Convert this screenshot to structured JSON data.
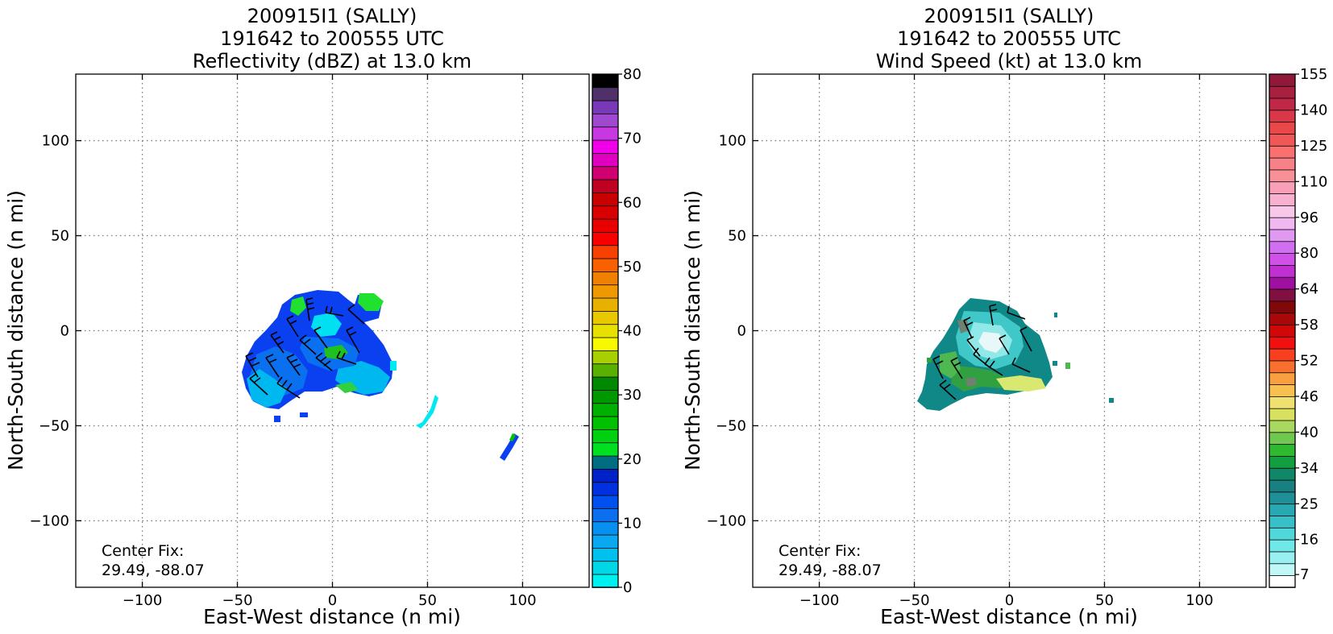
{
  "chart_data": [
    {
      "type": "heatmap",
      "title_lines": [
        "200915I1 (SALLY)",
        "191642 to 200555 UTC",
        "Reflectivity (dBZ) at 13.0 km"
      ],
      "xlabel": "East-West distance (n mi)",
      "ylabel": "North-South distance (n mi)",
      "xlim": [
        -135,
        135
      ],
      "ylim": [
        -135,
        135
      ],
      "xticks": [
        -100,
        -50,
        0,
        50,
        100
      ],
      "yticks": [
        -100,
        -50,
        0,
        50,
        100
      ],
      "xtick_labels": [
        "−100",
        "−50",
        "0",
        "50",
        "100"
      ],
      "ytick_labels": [
        "−100",
        "−50",
        "0",
        "50",
        "100"
      ],
      "grid": true,
      "center_fix_label": "Center Fix:",
      "center_fix_value": "29.49, -88.07",
      "colorbar": {
        "ticks": [
          0,
          10,
          20,
          30,
          40,
          50,
          60,
          70,
          80
        ],
        "tick_labels": [
          "0",
          "10",
          "20",
          "30",
          "40",
          "50",
          "60",
          "70",
          "80"
        ],
        "colors": [
          "#00f0f0",
          "#00d8e8",
          "#00c0f0",
          "#0aa8f0",
          "#0890f0",
          "#0a70f0",
          "#0050f0",
          "#0030e0",
          "#0020c8",
          "#006e80",
          "#00e020",
          "#00d010",
          "#00c000",
          "#00b000",
          "#009800",
          "#008800",
          "#58b000",
          "#a8d000",
          "#f8f800",
          "#e8e000",
          "#e8c800",
          "#e8b000",
          "#f09800",
          "#f08000",
          "#f86000",
          "#f84000",
          "#f80000",
          "#e80000",
          "#d80000",
          "#c80000",
          "#c00020",
          "#d00070",
          "#e000c0",
          "#f000e8",
          "#c838e0",
          "#a048d0",
          "#7838b8",
          "#503068",
          "#000000"
        ]
      },
      "features": {
        "echo_colors": [
          "#0a40f0",
          "#0a70f0",
          "#00b8f0",
          "#00e8f0",
          "#20e030",
          "#00c000"
        ]
      }
    },
    {
      "type": "heatmap",
      "title_lines": [
        "200915I1 (SALLY)",
        "191642 to 200555 UTC",
        "Wind Speed (kt) at 13.0 km"
      ],
      "xlabel": "East-West distance (n mi)",
      "ylabel": "North-South distance (n mi)",
      "xlim": [
        -135,
        135
      ],
      "ylim": [
        -135,
        135
      ],
      "xticks": [
        -100,
        -50,
        0,
        50,
        100
      ],
      "yticks": [
        -100,
        -50,
        0,
        50,
        100
      ],
      "xtick_labels": [
        "−100",
        "−50",
        "0",
        "50",
        "100"
      ],
      "ytick_labels": [
        "−100",
        "−50",
        "0",
        "50",
        "100"
      ],
      "grid": true,
      "center_fix_label": "Center Fix:",
      "center_fix_value": "29.49, -88.07",
      "colorbar": {
        "tick_labels": [
          "7",
          "16",
          "25",
          "34",
          "40",
          "46",
          "52",
          "58",
          "64",
          "80",
          "96",
          "110",
          "125",
          "140",
          "155"
        ],
        "colors": [
          "#ffffff",
          "#c0f8f8",
          "#98f0f0",
          "#70e8e8",
          "#50d8d8",
          "#38c0c8",
          "#28a8b0",
          "#209098",
          "#188080",
          "#108868",
          "#10a040",
          "#30b830",
          "#70c850",
          "#a8d860",
          "#d8e060",
          "#f0e070",
          "#f8c050",
          "#f8a040",
          "#f87030",
          "#f84020",
          "#f01010",
          "#d00808",
          "#a80808",
          "#800808",
          "#801040",
          "#a010a0",
          "#c030d0",
          "#d050e8",
          "#d070f0",
          "#e098f0",
          "#f0b8f0",
          "#f8c8e8",
          "#f8b0d0",
          "#f8a0b8",
          "#f89098",
          "#f88088",
          "#f87070",
          "#f05858",
          "#e84848",
          "#d83848",
          "#c02848",
          "#a82040",
          "#901838"
        ]
      },
      "features": {
        "wind_colors": [
          "#108888",
          "#40c8c8",
          "#90e8e8",
          "#e8f8f8",
          "#30a040",
          "#50b850",
          "#d8e870",
          "#708070"
        ]
      }
    }
  ]
}
